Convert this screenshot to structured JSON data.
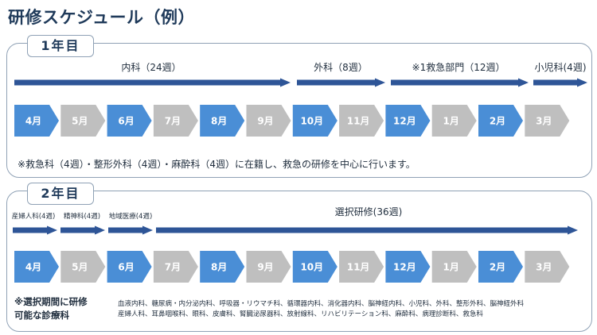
{
  "title": "研修スケジュール（例）",
  "colors": {
    "blue": "#4a8ed6",
    "gray": "#bfbfbf",
    "arrow": "#2e5597",
    "border": "#8fa1b5"
  },
  "year1": {
    "tab": "1年目",
    "arrows": [
      {
        "label": "内科（24週）"
      },
      {
        "label": "外科（8週）"
      },
      {
        "label": "※1救急部門（12週）"
      },
      {
        "label": "小児科(4週)"
      }
    ],
    "months": [
      {
        "label": "4月",
        "color": "blue"
      },
      {
        "label": "5月",
        "color": "gray"
      },
      {
        "label": "6月",
        "color": "blue"
      },
      {
        "label": "7月",
        "color": "gray"
      },
      {
        "label": "8月",
        "color": "blue"
      },
      {
        "label": "9月",
        "color": "gray"
      },
      {
        "label": "10月",
        "color": "blue"
      },
      {
        "label": "11月",
        "color": "gray"
      },
      {
        "label": "12月",
        "color": "blue"
      },
      {
        "label": "1月",
        "color": "gray"
      },
      {
        "label": "2月",
        "color": "blue"
      },
      {
        "label": "3月",
        "color": "gray"
      }
    ],
    "note": "※救急科（4週）・整形外科（4週）・麻酔科（4週）に在籍し、救急の研修を中心に行います。"
  },
  "year2": {
    "tab": "2年目",
    "arrows": [
      {
        "label": "産婦人科(4週)"
      },
      {
        "label": "精神科(4週)"
      },
      {
        "label": "地域医療(4週)"
      },
      {
        "label": "選択研修(36週)"
      }
    ],
    "months": [
      {
        "label": "4月",
        "color": "blue"
      },
      {
        "label": "5月",
        "color": "gray"
      },
      {
        "label": "6月",
        "color": "blue"
      },
      {
        "label": "7月",
        "color": "gray"
      },
      {
        "label": "8月",
        "color": "blue"
      },
      {
        "label": "9月",
        "color": "gray"
      },
      {
        "label": "10月",
        "color": "blue"
      },
      {
        "label": "11月",
        "color": "gray"
      },
      {
        "label": "12月",
        "color": "blue"
      },
      {
        "label": "1月",
        "color": "gray"
      },
      {
        "label": "2月",
        "color": "blue"
      },
      {
        "label": "3月",
        "color": "gray"
      }
    ],
    "note_line1": "※選択期間に研修",
    "note_line2": "可能な診療科",
    "specialties_line1": "血液内科、糖尿病・内分泌内科、呼吸器・リウマチ科、循環器内科、消化器内科、脳神経内科、小児科、外科、整形外科、脳神経外科",
    "specialties_line2": "産婦人科、耳鼻咽喉科、眼科、皮膚科、腎臓泌尿器科、放射線科、リハビリテーション科、麻酔科、病理診断科、救急科"
  }
}
